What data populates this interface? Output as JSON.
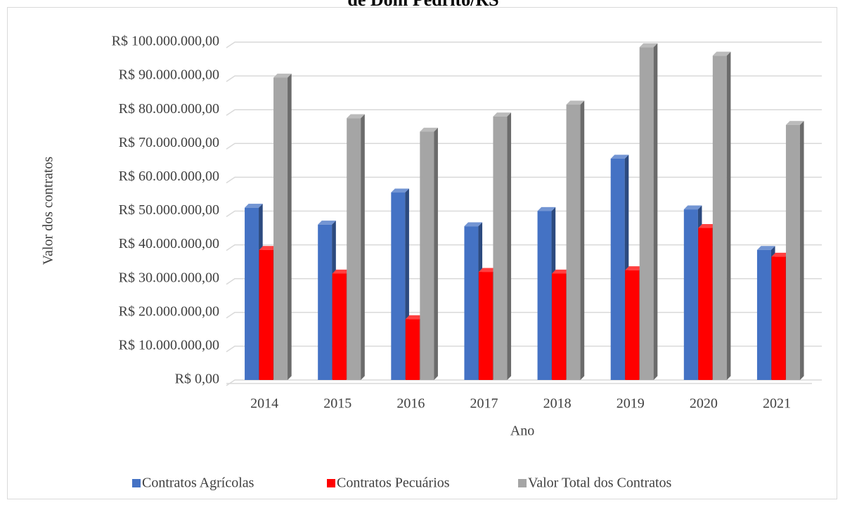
{
  "chart_data": {
    "type": "bar3d",
    "title": "de Dom Pedrito/RS",
    "y_label": "Valor dos contratos",
    "x_label": "Ano",
    "categories": [
      "2014",
      "2015",
      "2016",
      "2017",
      "2018",
      "2019",
      "2020",
      "2021"
    ],
    "series": [
      {
        "name": "Contratos Agrícolas",
        "color": "#4472c4",
        "values": [
          51000000,
          46000000,
          55500000,
          45500000,
          50000000,
          65500000,
          50500000,
          38500000
        ]
      },
      {
        "name": "Contratos Pecuários",
        "color": "#ff0000",
        "values": [
          38500000,
          31500000,
          18000000,
          32000000,
          31500000,
          32500000,
          45000000,
          36500000
        ]
      },
      {
        "name": "Valor Total dos Contratos",
        "color": "#a5a5a5",
        "values": [
          89500000,
          77500000,
          73500000,
          78000000,
          81500000,
          98500000,
          96000000,
          75500000
        ]
      }
    ],
    "ylim": [
      0,
      100000000
    ],
    "yticks": [
      {
        "value": 0,
        "label": "R$ 0,00"
      },
      {
        "value": 10000000,
        "label": "R$ 10.000.000,00"
      },
      {
        "value": 20000000,
        "label": "R$ 20.000.000,00"
      },
      {
        "value": 30000000,
        "label": "R$ 30.000.000,00"
      },
      {
        "value": 40000000,
        "label": "R$ 40.000.000,00"
      },
      {
        "value": 50000000,
        "label": "R$ 50.000.000,00"
      },
      {
        "value": 60000000,
        "label": "R$ 60.000.000,00"
      },
      {
        "value": 70000000,
        "label": "R$ 70.000.000,00"
      },
      {
        "value": 80000000,
        "label": "R$ 80.000.000,00"
      },
      {
        "value": 90000000,
        "label": "R$ 90.000.000,00"
      },
      {
        "value": 100000000,
        "label": "R$ 100.000.000,00"
      }
    ],
    "grid": true,
    "legend": "bottom"
  }
}
